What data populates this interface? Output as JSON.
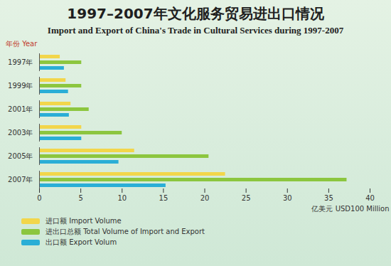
{
  "chart_data": {
    "type": "bar",
    "orientation": "horizontal",
    "title": "1997–2007年文化服务贸易进出口情况",
    "subtitle": "Import and Export of China's Trade in Cultural Services during 1997-2007",
    "y_label": "年份 Year",
    "x_label": "亿美元 USD100 Million",
    "categories": [
      "1997年",
      "1999年",
      "2001年",
      "2003年",
      "2005年",
      "2007年"
    ],
    "series": [
      {
        "name": "进口额 Import Volume",
        "color": "#f2d64b",
        "values": [
          2.5,
          3.2,
          3.8,
          5.1,
          11.5,
          22.5
        ]
      },
      {
        "name": "进出口总额 Total Volume of Import and Export",
        "color": "#8cc63f",
        "values": [
          5.1,
          5.1,
          6.0,
          10.0,
          20.5,
          37.2
        ]
      },
      {
        "name": "出口额 Export Volum",
        "color": "#2aaed6",
        "values": [
          3.0,
          3.5,
          3.6,
          5.1,
          9.6,
          15.3
        ]
      }
    ],
    "xlim": [
      0,
      40
    ],
    "xticks": [
      0,
      5,
      10,
      15,
      20,
      25,
      30,
      35,
      40
    ],
    "grid": false,
    "legend": "bottom-left"
  }
}
